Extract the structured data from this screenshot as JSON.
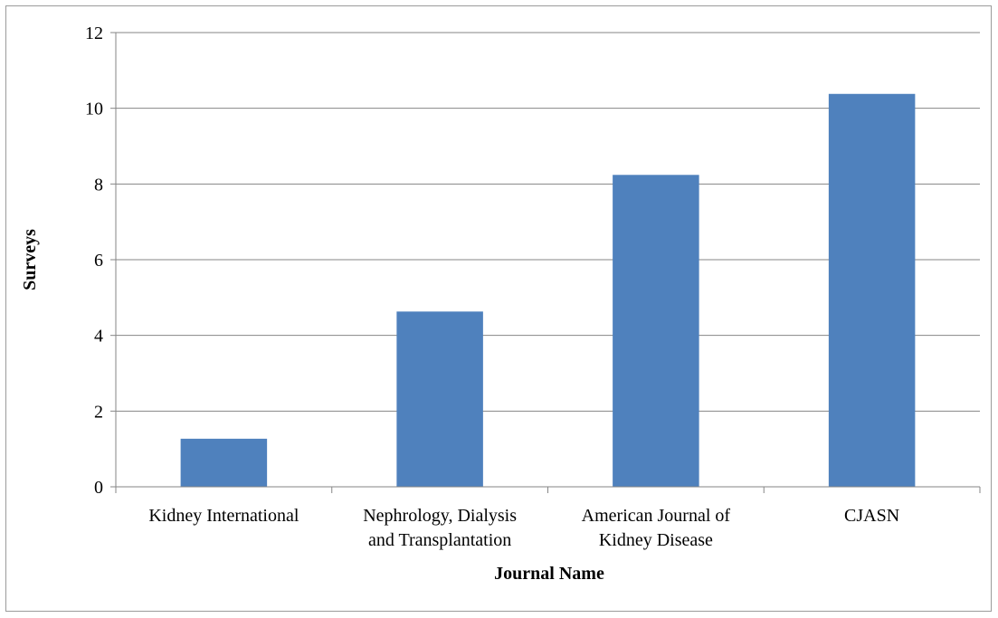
{
  "chart_data": {
    "type": "bar",
    "categories": [
      [
        "Kidney International"
      ],
      [
        "Nephrology, Dialysis",
        "and Transplantation"
      ],
      [
        "American Journal of",
        "Kidney Disease"
      ],
      [
        "CJASN"
      ]
    ],
    "values": [
      1.27,
      4.63,
      8.24,
      10.38
    ],
    "title": "",
    "xlabel": "Journal Name",
    "ylabel": "Surveys",
    "ylim": [
      0,
      12
    ],
    "yticks": [
      "0",
      "2",
      "4",
      "6",
      "8",
      "10",
      "12"
    ],
    "grid": true,
    "legend": "none",
    "bar_color": "#4f81bd",
    "grid_color": "#868686",
    "axis_color": "#868686"
  }
}
